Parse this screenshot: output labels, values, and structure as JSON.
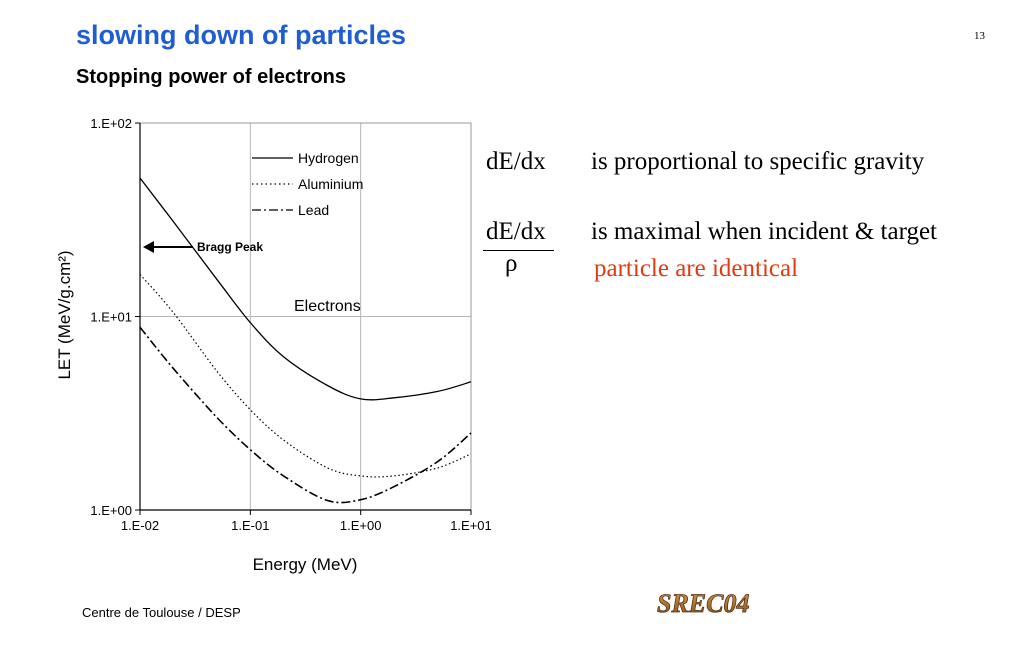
{
  "slide": {
    "title": "slowing down of particles",
    "subtitle": "Stopping power of electrons",
    "slide_number": "13",
    "footer": "Centre de Toulouse / DESP",
    "logo_text": "SREC04"
  },
  "notes": {
    "line1_label": "dE/dx",
    "line1_text": "is proportional to specific gravity",
    "line2_numerator": "dE/dx",
    "line2_denominator": "ρ",
    "line2_text": "is maximal when incident & target",
    "line2_continuation": "particle are identical",
    "accent_color": "#e03a10"
  },
  "chart_data": {
    "type": "line",
    "xlabel": "Energy (MeV)",
    "ylabel": "LET (MeV/g.cm²)",
    "x_scale": "log",
    "y_scale": "log",
    "xlim": [
      0.01,
      10
    ],
    "ylim": [
      1,
      100
    ],
    "x_ticks": [
      "1.E-02",
      "1.E-01",
      "1.E+00",
      "1.E+01"
    ],
    "y_ticks": [
      "1.E+00",
      "1.E+01",
      "1.E+02"
    ],
    "grid": true,
    "legend_position": "top-right",
    "annotations": [
      {
        "text": "Bragg Peak",
        "type": "arrow",
        "x": 0.01,
        "y": 24
      },
      {
        "text": "Electrons",
        "type": "label",
        "x": 0.75,
        "y": 11
      }
    ],
    "series": [
      {
        "name": "Hydrogen",
        "style": "solid",
        "color": "#000000",
        "x": [
          0.01,
          0.02,
          0.05,
          0.1,
          0.2,
          0.5,
          1.0,
          2.0,
          5.0,
          10.0
        ],
        "y": [
          52,
          31,
          15.5,
          9.3,
          6.2,
          4.4,
          3.75,
          3.8,
          4.1,
          4.6
        ]
      },
      {
        "name": "Aluminium",
        "style": "dotted",
        "color": "#000000",
        "x": [
          0.01,
          0.02,
          0.05,
          0.1,
          0.2,
          0.5,
          1.0,
          2.0,
          5.0,
          10.0
        ],
        "y": [
          16.5,
          10.5,
          5.2,
          3.3,
          2.3,
          1.65,
          1.5,
          1.5,
          1.65,
          1.95
        ]
      },
      {
        "name": "Lead",
        "style": "dashdot",
        "color": "#000000",
        "x": [
          0.01,
          0.02,
          0.05,
          0.1,
          0.2,
          0.5,
          1.0,
          2.0,
          5.0,
          10.0
        ],
        "y": [
          8.8,
          5.4,
          3.0,
          2.05,
          1.5,
          1.12,
          1.13,
          1.32,
          1.78,
          2.5
        ]
      }
    ]
  }
}
